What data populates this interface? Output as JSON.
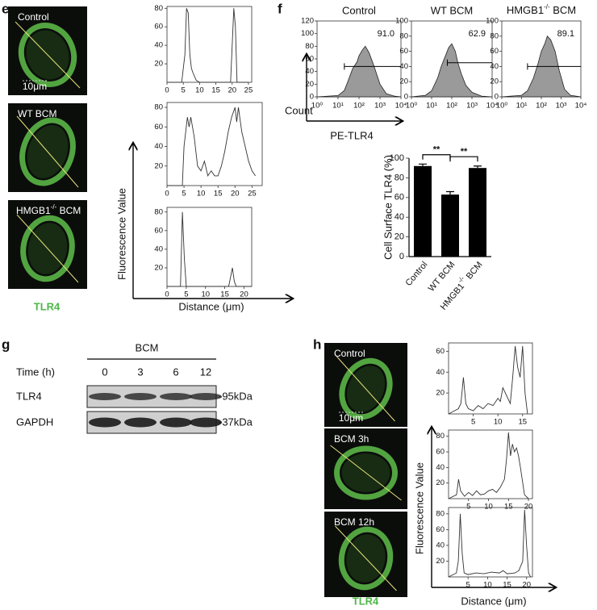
{
  "panel_e": {
    "label": "e",
    "images": [
      {
        "label": "Control",
        "scale_bar": "10μm"
      },
      {
        "label": "WT BCM"
      },
      {
        "label": {
          "text": "HMGB1",
          "sup": "-/-",
          "rest": " BCM"
        }
      }
    ],
    "stain": "TLR4",
    "y_label": "Fluorescence Value",
    "x_label": "Distance (μm)",
    "profiles": [
      {
        "x": [
          0,
          4.5,
          5.5,
          6,
          6.5,
          7,
          7.5,
          8,
          9,
          10,
          19.5,
          20,
          20.5,
          21,
          21.5,
          25
        ],
        "values": [
          0,
          0,
          30,
          80,
          75,
          30,
          15,
          10,
          2,
          0,
          0,
          40,
          80,
          60,
          0,
          0
        ],
        "xlim": [
          0,
          26
        ],
        "ylim": [
          0,
          82
        ],
        "xticks": [
          0,
          5,
          10,
          15,
          20,
          25
        ],
        "yticks": [
          20,
          40,
          60,
          80
        ]
      },
      {
        "x": [
          0,
          4.5,
          5,
          6,
          6.5,
          7,
          8,
          9,
          10,
          11,
          12,
          13,
          14,
          15,
          16,
          17,
          18,
          19,
          20,
          20.5,
          21,
          22,
          23,
          24,
          25,
          26
        ],
        "values": [
          0,
          0,
          40,
          70,
          60,
          70,
          50,
          20,
          15,
          25,
          10,
          15,
          10,
          10,
          20,
          35,
          55,
          70,
          80,
          65,
          80,
          55,
          40,
          25,
          15,
          10
        ],
        "xlim": [
          0,
          28
        ],
        "ylim": [
          0,
          85
        ],
        "xticks": [
          0,
          5,
          10,
          15,
          20,
          25
        ],
        "yticks": [
          20,
          40,
          60,
          80
        ]
      },
      {
        "x": [
          0,
          3.5,
          4,
          4.5,
          5,
          16,
          16.5,
          17,
          17.5,
          18,
          22
        ],
        "values": [
          0,
          0,
          80,
          30,
          0,
          0,
          10,
          20,
          5,
          0,
          0
        ],
        "xlim": [
          0,
          22
        ],
        "ylim": [
          0,
          85
        ],
        "xticks": [
          0,
          5,
          10,
          15,
          20
        ],
        "yticks": [
          20,
          40,
          60,
          80
        ]
      }
    ]
  },
  "panel_f": {
    "label": "f",
    "y_label": "Count",
    "x_label": "PE-TLR4",
    "histograms": [
      {
        "title": "Control",
        "gated_percent": "91.0",
        "log_x": true,
        "gate_x": [
          20,
          10000
        ],
        "gate_y": 48,
        "x": [
          1,
          10,
          20,
          30,
          50,
          80,
          100,
          150,
          200,
          300,
          500,
          1000,
          2000,
          5000,
          10000
        ],
        "values": [
          0,
          2,
          10,
          25,
          45,
          55,
          65,
          75,
          80,
          70,
          50,
          20,
          5,
          1,
          0
        ],
        "xlim": [
          1,
          10000
        ],
        "ylim": [
          0,
          120
        ],
        "yticks": [
          0,
          20,
          40,
          60,
          80,
          100,
          120
        ],
        "xticks": [
          {
            "value": 1,
            "label": "10⁰"
          },
          {
            "value": 10,
            "label": "10¹"
          },
          {
            "value": 100,
            "label": "10²"
          },
          {
            "value": 1000,
            "label": "10³"
          },
          {
            "value": 10000,
            "label": "10⁴"
          }
        ]
      },
      {
        "title": "WT BCM",
        "gated_percent": "62.9",
        "log_x": true,
        "gate_x": [
          60,
          10000
        ],
        "gate_y": 45,
        "x": [
          1,
          5,
          10,
          20,
          30,
          50,
          70,
          100,
          150,
          200,
          300,
          500,
          1000,
          3000,
          10000
        ],
        "values": [
          0,
          2,
          8,
          25,
          40,
          55,
          65,
          70,
          60,
          45,
          30,
          15,
          6,
          1,
          0
        ],
        "xlim": [
          1,
          10000
        ],
        "ylim": [
          0,
          100
        ],
        "yticks": [
          0,
          20,
          40,
          60,
          80,
          100
        ],
        "xticks": [
          {
            "value": 1,
            "label": "10⁰"
          },
          {
            "value": 10,
            "label": "10¹"
          },
          {
            "value": 100,
            "label": "10²"
          },
          {
            "value": 1000,
            "label": "10³"
          },
          {
            "value": 10000,
            "label": "10⁴"
          }
        ]
      },
      {
        "title": {
          "text": "HMGB1",
          "sup": "-/-",
          "rest": " BCM"
        },
        "gated_percent": "89.1",
        "log_x": true,
        "gate_x": [
          20,
          10000
        ],
        "gate_y": 40,
        "x": [
          1,
          10,
          20,
          40,
          70,
          100,
          150,
          200,
          300,
          500,
          800,
          1500,
          3000,
          10000
        ],
        "values": [
          0,
          2,
          8,
          25,
          45,
          60,
          70,
          80,
          75,
          60,
          35,
          10,
          2,
          0
        ],
        "xlim": [
          1,
          10000
        ],
        "ylim": [
          0,
          100
        ],
        "yticks": [
          0,
          20,
          40,
          60,
          80,
          100
        ],
        "xticks": [
          {
            "value": 1,
            "label": "10⁰"
          },
          {
            "value": 10,
            "label": "10¹"
          },
          {
            "value": 100,
            "label": "10²"
          },
          {
            "value": 1000,
            "label": "10³"
          },
          {
            "value": 10000,
            "label": "10⁴"
          }
        ]
      }
    ],
    "bar_chart": {
      "type": "bar",
      "y_label": "Cell Surface TLR4 (%)",
      "categories": [
        "Control",
        "WT BCM",
        {
          "text": "HMGB1",
          "sup": "-/-",
          "rest": " BCM"
        }
      ],
      "values": [
        92,
        63,
        90
      ],
      "errors": [
        2,
        3,
        2
      ],
      "color": "#000000",
      "ylim": [
        0,
        100
      ],
      "yticks": [
        0,
        20,
        40,
        60,
        80,
        100
      ],
      "comparisons": [
        {
          "pair": [
            0,
            1
          ],
          "label": "**"
        },
        {
          "pair": [
            1,
            2
          ],
          "label": "**"
        }
      ]
    }
  },
  "panel_g": {
    "label": "g",
    "treatment": "BCM",
    "time_label": "Time (h)",
    "times": [
      "0",
      "3",
      "6",
      "12"
    ],
    "rows": [
      {
        "protein": "TLR4",
        "size": "-95kDa"
      },
      {
        "protein": "GAPDH",
        "size": "-37kDa"
      }
    ]
  },
  "panel_h": {
    "label": "h",
    "images": [
      {
        "label": "Control",
        "scale_bar": "10μm"
      },
      {
        "label": "BCM 3h"
      },
      {
        "label": "BCM 12h"
      }
    ],
    "stain": "TLR4",
    "y_label": "Fluorescence Value",
    "x_label": "Distance (μm)",
    "profiles": [
      {
        "x": [
          0,
          2,
          2.5,
          3,
          3.5,
          4,
          5,
          6,
          7,
          8,
          9,
          10,
          10.5,
          11,
          11.5,
          12,
          12.5,
          13,
          13.5,
          14,
          14.5,
          15,
          15.5,
          16
        ],
        "values": [
          0,
          5,
          10,
          35,
          10,
          5,
          3,
          8,
          5,
          10,
          8,
          15,
          12,
          25,
          20,
          15,
          10,
          35,
          65,
          45,
          35,
          65,
          20,
          0
        ],
        "xlim": [
          0,
          17
        ],
        "ylim": [
          0,
          68
        ],
        "xticks": [
          5,
          10,
          15
        ],
        "yticks": [
          20,
          40,
          60
        ]
      },
      {
        "x": [
          0,
          2,
          2.5,
          3,
          4,
          5,
          6,
          7,
          8,
          9,
          10,
          11,
          12,
          13,
          14,
          14.5,
          15,
          15.5,
          16,
          16.5,
          17,
          17.5,
          18,
          19,
          20
        ],
        "values": [
          0,
          5,
          25,
          10,
          3,
          8,
          4,
          10,
          5,
          6,
          10,
          12,
          8,
          15,
          25,
          50,
          85,
          55,
          70,
          60,
          65,
          55,
          40,
          5,
          0
        ],
        "xlim": [
          0,
          21
        ],
        "ylim": [
          0,
          88
        ],
        "xticks": [
          5,
          10,
          15,
          20
        ],
        "yticks": [
          20,
          40,
          60,
          80
        ]
      },
      {
        "x": [
          0,
          2,
          2.5,
          3,
          3.5,
          4,
          5,
          7,
          9,
          11,
          13,
          14,
          15,
          17,
          18,
          19,
          19.5,
          20,
          20.5,
          21
        ],
        "values": [
          0,
          5,
          20,
          80,
          30,
          5,
          3,
          5,
          4,
          6,
          5,
          8,
          4,
          5,
          8,
          20,
          85,
          40,
          5,
          0
        ],
        "xlim": [
          0,
          21.5
        ],
        "ylim": [
          0,
          88
        ],
        "xticks": [
          5,
          10,
          15,
          20
        ],
        "yticks": [
          20,
          40,
          60,
          80
        ]
      }
    ]
  }
}
